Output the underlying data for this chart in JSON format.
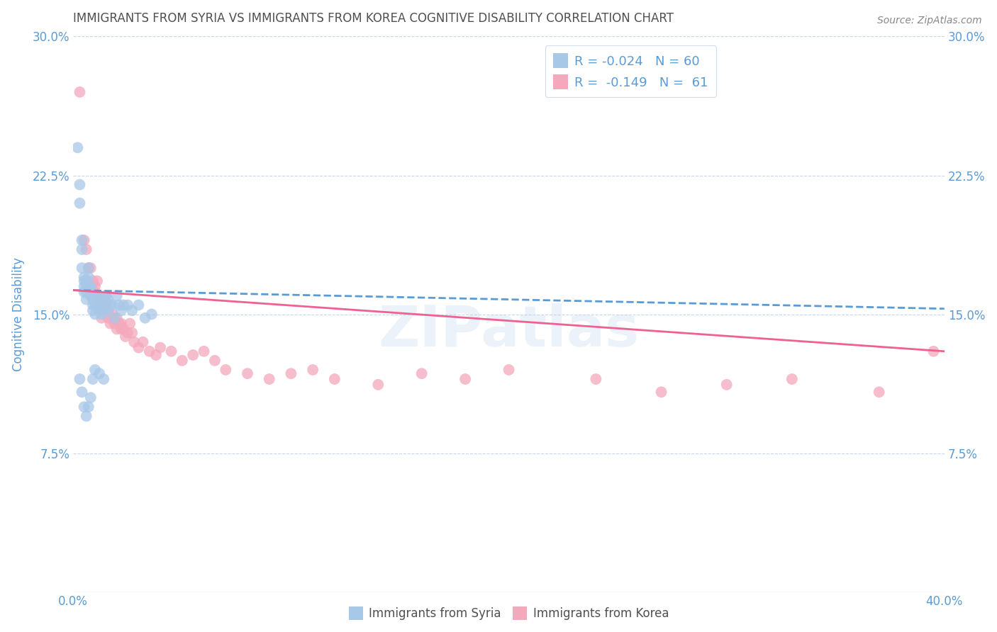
{
  "title": "IMMIGRANTS FROM SYRIA VS IMMIGRANTS FROM KOREA COGNITIVE DISABILITY CORRELATION CHART",
  "source": "Source: ZipAtlas.com",
  "ylabel": "Cognitive Disability",
  "xmin": 0.0,
  "xmax": 0.4,
  "ymin": 0.0,
  "ymax": 0.3,
  "xticks": [
    0.0,
    0.05,
    0.1,
    0.15,
    0.2,
    0.25,
    0.3,
    0.35,
    0.4
  ],
  "yticks": [
    0.0,
    0.075,
    0.15,
    0.225,
    0.3
  ],
  "ytick_labels": [
    "",
    "7.5%",
    "15.0%",
    "22.5%",
    "30.0%"
  ],
  "xtick_labels": [
    "0.0%",
    "",
    "",
    "",
    "",
    "",
    "",
    "",
    "40.0%"
  ],
  "legend_syria_label": "Immigrants from Syria",
  "legend_korea_label": "Immigrants from Korea",
  "syria_R": "-0.024",
  "syria_N": "60",
  "korea_R": "-0.149",
  "korea_N": "61",
  "syria_color": "#a8c8e8",
  "korea_color": "#f4a8bc",
  "syria_line_color": "#5b9bd5",
  "korea_line_color": "#f06090",
  "background_color": "#ffffff",
  "grid_color": "#c8d4e8",
  "title_color": "#505050",
  "axis_label_color": "#5b9bd5",
  "legend_text_color": "#5b9bd5",
  "syria_scatter_x": [
    0.002,
    0.003,
    0.003,
    0.004,
    0.004,
    0.004,
    0.005,
    0.005,
    0.005,
    0.005,
    0.006,
    0.006,
    0.006,
    0.006,
    0.007,
    0.007,
    0.007,
    0.008,
    0.008,
    0.008,
    0.009,
    0.009,
    0.009,
    0.01,
    0.01,
    0.01,
    0.011,
    0.011,
    0.012,
    0.012,
    0.013,
    0.013,
    0.014,
    0.014,
    0.015,
    0.015,
    0.016,
    0.016,
    0.017,
    0.018,
    0.019,
    0.02,
    0.021,
    0.022,
    0.023,
    0.025,
    0.027,
    0.03,
    0.033,
    0.036,
    0.003,
    0.004,
    0.005,
    0.006,
    0.007,
    0.008,
    0.009,
    0.01,
    0.012,
    0.014
  ],
  "syria_scatter_y": [
    0.24,
    0.22,
    0.21,
    0.19,
    0.185,
    0.175,
    0.17,
    0.168,
    0.165,
    0.162,
    0.168,
    0.165,
    0.162,
    0.158,
    0.175,
    0.17,
    0.165,
    0.165,
    0.163,
    0.16,
    0.158,
    0.155,
    0.152,
    0.16,
    0.155,
    0.15,
    0.16,
    0.155,
    0.158,
    0.152,
    0.155,
    0.15,
    0.158,
    0.152,
    0.16,
    0.155,
    0.158,
    0.152,
    0.155,
    0.155,
    0.148,
    0.16,
    0.155,
    0.152,
    0.155,
    0.155,
    0.152,
    0.155,
    0.148,
    0.15,
    0.115,
    0.108,
    0.1,
    0.095,
    0.1,
    0.105,
    0.115,
    0.12,
    0.118,
    0.115
  ],
  "korea_scatter_x": [
    0.003,
    0.005,
    0.006,
    0.007,
    0.008,
    0.008,
    0.009,
    0.01,
    0.01,
    0.011,
    0.011,
    0.012,
    0.012,
    0.013,
    0.013,
    0.014,
    0.015,
    0.015,
    0.016,
    0.016,
    0.017,
    0.018,
    0.018,
    0.019,
    0.02,
    0.02,
    0.021,
    0.022,
    0.022,
    0.023,
    0.024,
    0.025,
    0.026,
    0.027,
    0.028,
    0.03,
    0.032,
    0.035,
    0.038,
    0.04,
    0.045,
    0.05,
    0.055,
    0.06,
    0.065,
    0.07,
    0.08,
    0.09,
    0.1,
    0.11,
    0.12,
    0.14,
    0.16,
    0.18,
    0.2,
    0.24,
    0.27,
    0.3,
    0.33,
    0.37,
    0.395
  ],
  "korea_scatter_y": [
    0.27,
    0.19,
    0.185,
    0.175,
    0.165,
    0.175,
    0.168,
    0.165,
    0.162,
    0.168,
    0.155,
    0.158,
    0.155,
    0.152,
    0.148,
    0.155,
    0.16,
    0.155,
    0.152,
    0.148,
    0.145,
    0.15,
    0.148,
    0.145,
    0.142,
    0.148,
    0.145,
    0.142,
    0.145,
    0.142,
    0.138,
    0.14,
    0.145,
    0.14,
    0.135,
    0.132,
    0.135,
    0.13,
    0.128,
    0.132,
    0.13,
    0.125,
    0.128,
    0.13,
    0.125,
    0.12,
    0.118,
    0.115,
    0.118,
    0.12,
    0.115,
    0.112,
    0.118,
    0.115,
    0.12,
    0.115,
    0.108,
    0.112,
    0.115,
    0.108,
    0.13
  ],
  "syria_line_x0": 0.0,
  "syria_line_x1": 0.4,
  "syria_line_y0": 0.163,
  "syria_line_y1": 0.153,
  "korea_line_x0": 0.0,
  "korea_line_x1": 0.4,
  "korea_line_y0": 0.163,
  "korea_line_y1": 0.13
}
